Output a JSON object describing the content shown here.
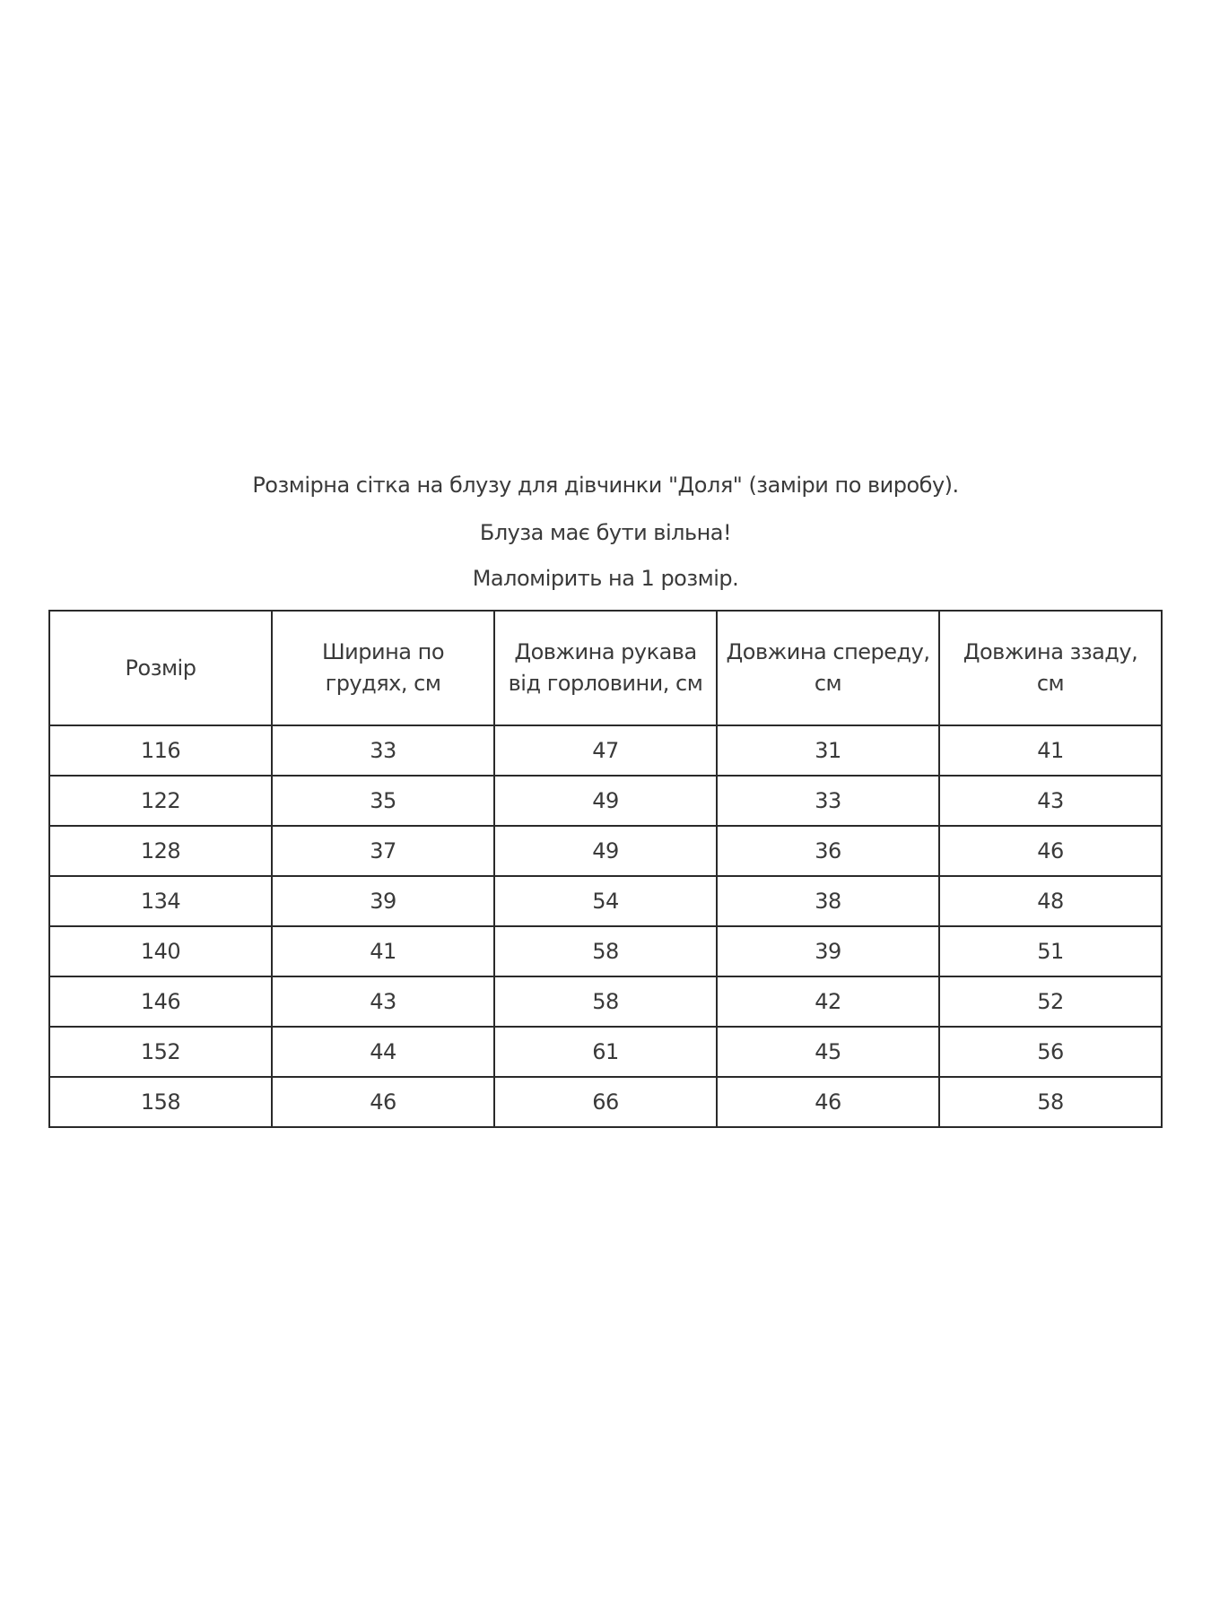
{
  "intro": [
    "Розмірна сітка на блузу для дівчинки \"Доля\" (заміри по виробу).",
    "Блуза має бути вільна!",
    "Маломірить  на 1 розмір."
  ],
  "table": {
    "headers": [
      "Розмір",
      "Ширина по грудях, см",
      "Довжина рукава від горловини, см",
      "Довжина спереду, см",
      "Довжина ззаду, см"
    ],
    "rows": [
      [
        "116",
        "33",
        "47",
        "31",
        "41"
      ],
      [
        "122",
        "35",
        "49",
        "33",
        "43"
      ],
      [
        "128",
        "37",
        "49",
        "36",
        "46"
      ],
      [
        "134",
        "39",
        "54",
        "38",
        "48"
      ],
      [
        "140",
        "41",
        "58",
        "39",
        "51"
      ],
      [
        "146",
        "43",
        "58",
        "42",
        "52"
      ],
      [
        "152",
        "44",
        "61",
        "45",
        "56"
      ],
      [
        "158",
        "46",
        "66",
        "46",
        "58"
      ]
    ]
  }
}
